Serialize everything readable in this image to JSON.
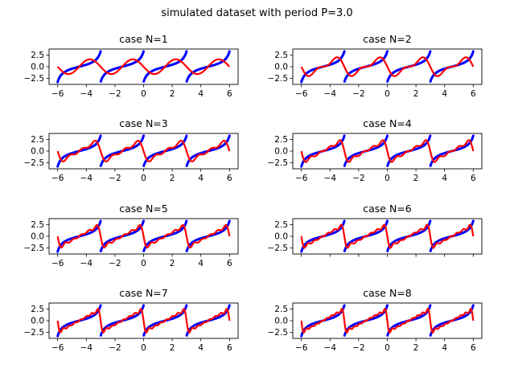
{
  "figure": {
    "suptitle": "simulated dataset with period P=3.0"
  },
  "chart_data": {
    "type": "line",
    "period": 3.0,
    "xlim": [
      -6.6,
      6.6
    ],
    "ylim": [
      -3.8,
      3.8
    ],
    "xticks": [
      -6,
      -4,
      -2,
      0,
      2,
      4,
      6
    ],
    "xtick_labels": [
      "−6",
      "−4",
      "−2",
      "0",
      "2",
      "4",
      "6"
    ],
    "yticks": [
      2.5,
      0.0,
      -2.5
    ],
    "ytick_labels": [
      "2.5",
      "0.0",
      "−2.5"
    ],
    "x_range": [
      -6,
      6
    ],
    "series_style": [
      {
        "role": "data",
        "color": "#0000ff",
        "marker": "dots"
      },
      {
        "role": "fit",
        "color": "#ff0000",
        "marker": "line"
      }
    ],
    "panels": [
      {
        "title": "case N=1",
        "N": 1,
        "show_xticks": true
      },
      {
        "title": "case N=2",
        "N": 2,
        "show_xticks": true
      },
      {
        "title": "case N=3",
        "N": 3,
        "show_xticks": true
      },
      {
        "title": "case N=4",
        "N": 4,
        "show_xticks": true
      },
      {
        "title": "case N=5",
        "N": 5,
        "show_xticks": true
      },
      {
        "title": "case N=6",
        "N": 6,
        "show_xticks": false
      },
      {
        "title": "case N=7",
        "N": 7,
        "show_xticks": true
      },
      {
        "title": "case N=8",
        "N": 8,
        "show_xticks": true
      }
    ]
  }
}
